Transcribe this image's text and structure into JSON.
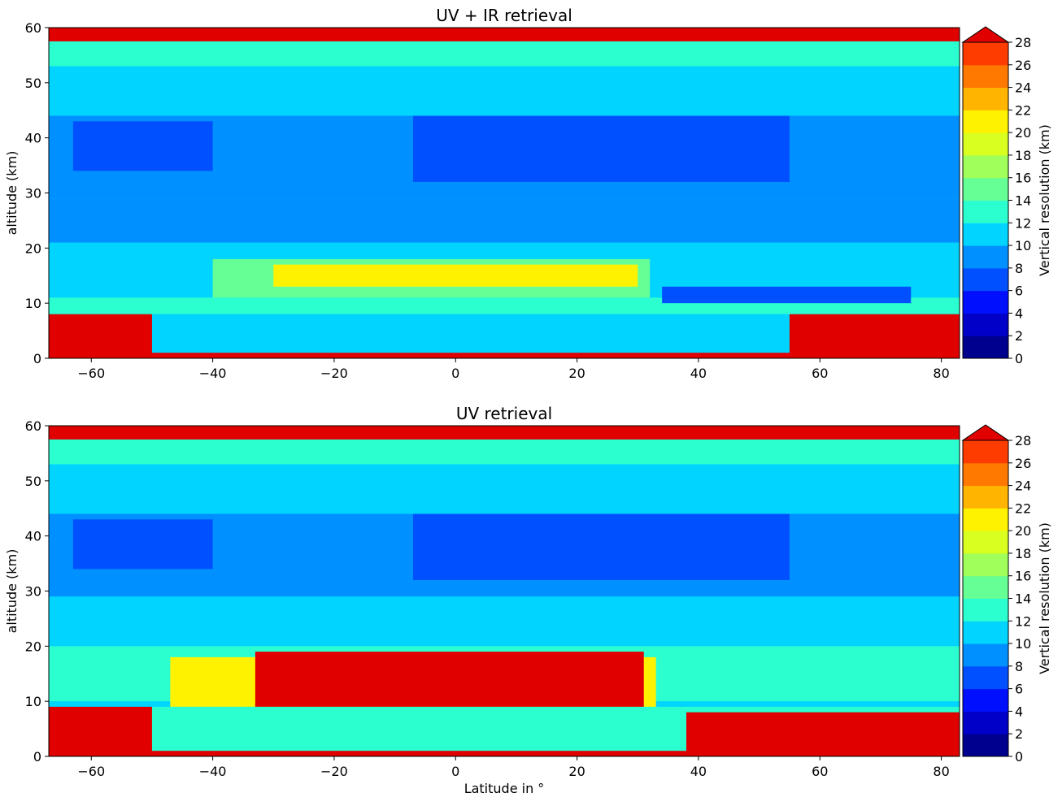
{
  "chart_data": [
    {
      "type": "heatmap",
      "title": "UV + IR retrieval",
      "xlabel": "",
      "ylabel": "altitude (km)",
      "xlim": [
        -67,
        83
      ],
      "ylim": [
        0,
        60
      ],
      "xticks": [
        -60,
        -40,
        -20,
        0,
        20,
        40,
        60,
        80
      ],
      "yticks": [
        0,
        10,
        20,
        30,
        40,
        50,
        60
      ],
      "colorbar": {
        "label": "Vertical resolution (km)",
        "levels": [
          0,
          2,
          4,
          6,
          8,
          10,
          12,
          14,
          16,
          18,
          20,
          22,
          24,
          26,
          28
        ],
        "extend": "max"
      },
      "colormap": [
        "#00008f",
        "#0000c8",
        "#0010ff",
        "#0050ff",
        "#0090ff",
        "#00d4ff",
        "#2cffcf",
        "#66ff96",
        "#a0ff5a",
        "#d8ff20",
        "#fff200",
        "#ffb400",
        "#ff7800",
        "#ff3c00",
        "#e00000"
      ],
      "regions": [
        {
          "lat": [
            -67,
            83
          ],
          "alt": [
            57.5,
            60
          ],
          "value": 28
        },
        {
          "lat": [
            -67,
            83
          ],
          "alt": [
            53,
            57.5
          ],
          "value": 12
        },
        {
          "lat": [
            -67,
            83
          ],
          "alt": [
            44,
            53
          ],
          "value": 10
        },
        {
          "lat": [
            -67,
            83
          ],
          "alt": [
            29,
            44
          ],
          "value": 8
        },
        {
          "lat": [
            -63,
            -40
          ],
          "alt": [
            34,
            43
          ],
          "value": 6
        },
        {
          "lat": [
            -7,
            55
          ],
          "alt": [
            32,
            44
          ],
          "value": 6
        },
        {
          "lat": [
            -67,
            83
          ],
          "alt": [
            21,
            29
          ],
          "value": 8
        },
        {
          "lat": [
            -40,
            32
          ],
          "alt": [
            11,
            18
          ],
          "value": 14
        },
        {
          "lat": [
            -30,
            30
          ],
          "alt": [
            13,
            17
          ],
          "value": 20
        },
        {
          "lat": [
            -67,
            83
          ],
          "alt": [
            8,
            11
          ],
          "value": 12
        },
        {
          "lat": [
            34,
            75
          ],
          "alt": [
            10,
            13
          ],
          "value": 6
        },
        {
          "lat": [
            -67,
            83
          ],
          "alt": [
            1,
            8
          ],
          "value": 10
        },
        {
          "lat": [
            -67,
            -50
          ],
          "alt": [
            0,
            8
          ],
          "value": 28
        },
        {
          "lat": [
            55,
            83
          ],
          "alt": [
            0,
            8
          ],
          "value": 28
        },
        {
          "lat": [
            -67,
            83
          ],
          "alt": [
            0,
            1
          ],
          "value": 28
        }
      ]
    },
    {
      "type": "heatmap",
      "title": "UV retrieval",
      "xlabel": "Latitude in °",
      "ylabel": "altitude (km)",
      "xlim": [
        -67,
        83
      ],
      "ylim": [
        0,
        60
      ],
      "xticks": [
        -60,
        -40,
        -20,
        0,
        20,
        40,
        60,
        80
      ],
      "yticks": [
        0,
        10,
        20,
        30,
        40,
        50,
        60
      ],
      "colorbar": {
        "label": "Vertical resolution (km)",
        "levels": [
          0,
          2,
          4,
          6,
          8,
          10,
          12,
          14,
          16,
          18,
          20,
          22,
          24,
          26,
          28
        ],
        "extend": "max"
      },
      "colormap": [
        "#00008f",
        "#0000c8",
        "#0010ff",
        "#0050ff",
        "#0090ff",
        "#00d4ff",
        "#2cffcf",
        "#66ff96",
        "#a0ff5a",
        "#d8ff20",
        "#fff200",
        "#ffb400",
        "#ff7800",
        "#ff3c00",
        "#e00000"
      ],
      "regions": [
        {
          "lat": [
            -67,
            83
          ],
          "alt": [
            57.5,
            60
          ],
          "value": 28
        },
        {
          "lat": [
            -67,
            83
          ],
          "alt": [
            53,
            57.5
          ],
          "value": 12
        },
        {
          "lat": [
            -67,
            83
          ],
          "alt": [
            44,
            53
          ],
          "value": 10
        },
        {
          "lat": [
            -67,
            83
          ],
          "alt": [
            29,
            44
          ],
          "value": 8
        },
        {
          "lat": [
            -63,
            -40
          ],
          "alt": [
            34,
            43
          ],
          "value": 6
        },
        {
          "lat": [
            -7,
            55
          ],
          "alt": [
            32,
            44
          ],
          "value": 6
        },
        {
          "lat": [
            -67,
            83
          ],
          "alt": [
            20,
            29
          ],
          "value": 10
        },
        {
          "lat": [
            -67,
            83
          ],
          "alt": [
            10,
            20
          ],
          "value": 12
        },
        {
          "lat": [
            -47,
            33
          ],
          "alt": [
            9,
            18
          ],
          "value": 20
        },
        {
          "lat": [
            -33,
            31
          ],
          "alt": [
            9,
            19
          ],
          "value": 28
        },
        {
          "lat": [
            -67,
            83
          ],
          "alt": [
            1,
            9
          ],
          "value": 12
        },
        {
          "lat": [
            -67,
            -50
          ],
          "alt": [
            0,
            9
          ],
          "value": 28
        },
        {
          "lat": [
            38,
            83
          ],
          "alt": [
            0,
            8
          ],
          "value": 28
        },
        {
          "lat": [
            -67,
            83
          ],
          "alt": [
            0,
            1
          ],
          "value": 28
        }
      ]
    }
  ]
}
